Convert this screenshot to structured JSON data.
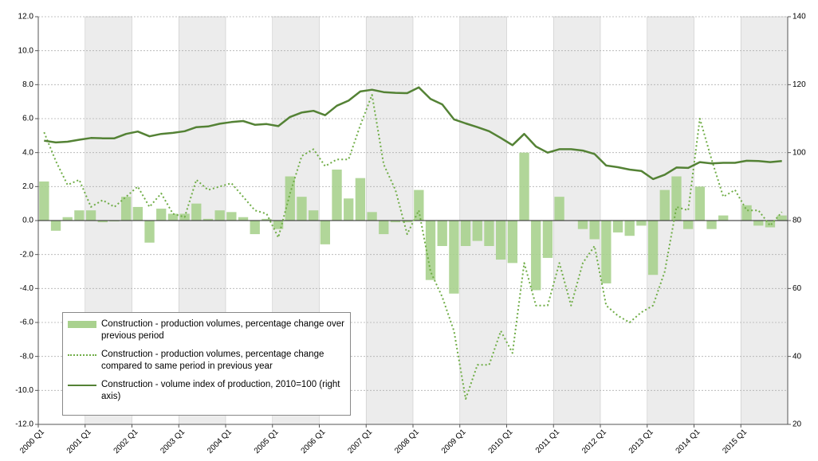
{
  "chart_data": {
    "type": "bar_line",
    "categories": [
      "2000 Q1",
      null,
      null,
      null,
      "2001 Q1",
      null,
      null,
      null,
      "2002 Q1",
      null,
      null,
      null,
      "2003 Q1",
      null,
      null,
      null,
      "2004 Q1",
      null,
      null,
      null,
      "2005 Q1",
      null,
      null,
      null,
      "2006 Q1",
      null,
      null,
      null,
      "2007 Q1",
      null,
      null,
      null,
      "2008 Q1",
      null,
      null,
      null,
      "2009 Q1",
      null,
      null,
      null,
      "2010 Q1",
      null,
      null,
      null,
      "2011 Q1",
      null,
      null,
      null,
      "2012 Q1",
      null,
      null,
      null,
      "2013 Q1",
      null,
      null,
      null,
      "2014 Q1",
      null,
      null,
      null,
      "2015 Q1",
      null,
      null,
      null
    ],
    "series": [
      {
        "name": "Construction - production volumes, percentage change over previous period",
        "type": "bar",
        "color": "#a9d18e",
        "values": [
          2.3,
          -0.6,
          0.2,
          0.6,
          0.6,
          -0.1,
          -0.05,
          1.4,
          0.8,
          -1.3,
          0.7,
          0.4,
          0.4,
          1.0,
          0.1,
          0.6,
          0.5,
          0.2,
          -0.8,
          0.1,
          -0.5,
          2.6,
          1.4,
          0.6,
          -1.4,
          3.0,
          1.3,
          2.5,
          0.5,
          -0.8,
          -0.1,
          -0.1,
          1.8,
          -3.5,
          -1.5,
          -4.3,
          -1.5,
          -1.2,
          -1.5,
          -2.3,
          -2.5,
          4.0,
          -4.1,
          -2.2,
          1.4,
          0.0,
          -0.5,
          -1.1,
          -3.7,
          -0.7,
          -0.9,
          -0.3,
          -3.2,
          1.8,
          2.6,
          -0.5,
          2.0,
          -0.5,
          0.3,
          0.0,
          0.9,
          -0.3,
          -0.4,
          0.3
        ]
      },
      {
        "name": "Construction - production volumes, percentage change compared to same period in previous year",
        "type": "dotted-line",
        "color": "#70ad47",
        "values": [
          5.2,
          3.5,
          2.1,
          2.4,
          0.8,
          1.2,
          0.8,
          1.4,
          2.0,
          0.8,
          1.6,
          0.4,
          0.2,
          2.4,
          1.8,
          2.0,
          2.2,
          1.4,
          0.6,
          0.4,
          -1.0,
          1.6,
          3.8,
          4.2,
          3.2,
          3.6,
          3.6,
          5.6,
          7.4,
          3.3,
          1.8,
          -0.8,
          0.6,
          -3.0,
          -4.5,
          -6.5,
          -10.5,
          -8.5,
          -8.5,
          -6.5,
          -7.8,
          -2.5,
          -5.0,
          -5.0,
          -2.5,
          -5.0,
          -2.5,
          -1.5,
          -5.0,
          -5.6,
          -6.0,
          -5.4,
          -5.0,
          -3.0,
          0.8,
          0.6,
          6.0,
          3.6,
          1.4,
          1.8,
          0.6,
          0.6,
          -0.3,
          0.5
        ]
      },
      {
        "name": "Construction - volume index of production, 2010=100 (right axis)",
        "type": "line",
        "color": "#548235",
        "axis": "y2",
        "values": [
          103.5,
          103,
          103.2,
          103.8,
          104.3,
          104.2,
          104.2,
          105.5,
          106.2,
          104.8,
          105.5,
          105.8,
          106.3,
          107.5,
          107.7,
          108.5,
          109,
          109.3,
          108.2,
          108.4,
          107.8,
          110.5,
          111.8,
          112.3,
          111,
          113.8,
          115.3,
          118,
          118.5,
          117.8,
          117.6,
          117.5,
          119.2,
          115.8,
          114.2,
          109.8,
          108.6,
          107.5,
          106.3,
          104.3,
          102.2,
          105.5,
          101.8,
          100,
          101,
          101,
          100.6,
          99.6,
          96.2,
          95.7,
          95,
          94.6,
          92.2,
          93.5,
          95.6,
          95.5,
          97.2,
          96.8,
          97,
          97,
          97.6,
          97.5,
          97.2,
          97.5
        ]
      }
    ],
    "ylim": [
      -12,
      12
    ],
    "yticks": [
      {
        "value": -12,
        "label": "-12.0"
      },
      {
        "value": -10,
        "label": "-10.0"
      },
      {
        "value": -8,
        "label": "-8.0"
      },
      {
        "value": -6,
        "label": "-6.0"
      },
      {
        "value": -4,
        "label": "-4.0"
      },
      {
        "value": -2,
        "label": "-2.0"
      },
      {
        "value": 0,
        "label": "0.0"
      },
      {
        "value": 2,
        "label": "2.0"
      },
      {
        "value": 4,
        "label": "4.0"
      },
      {
        "value": 6,
        "label": "6.0"
      },
      {
        "value": 8,
        "label": "8.0"
      },
      {
        "value": 10,
        "label": "10.0"
      },
      {
        "value": 12,
        "label": "12.0"
      }
    ],
    "y2lim": [
      20,
      140
    ],
    "y2ticks": [
      20,
      40,
      60,
      80,
      100,
      120,
      140
    ],
    "grid": true,
    "legend": "bottom-left"
  }
}
